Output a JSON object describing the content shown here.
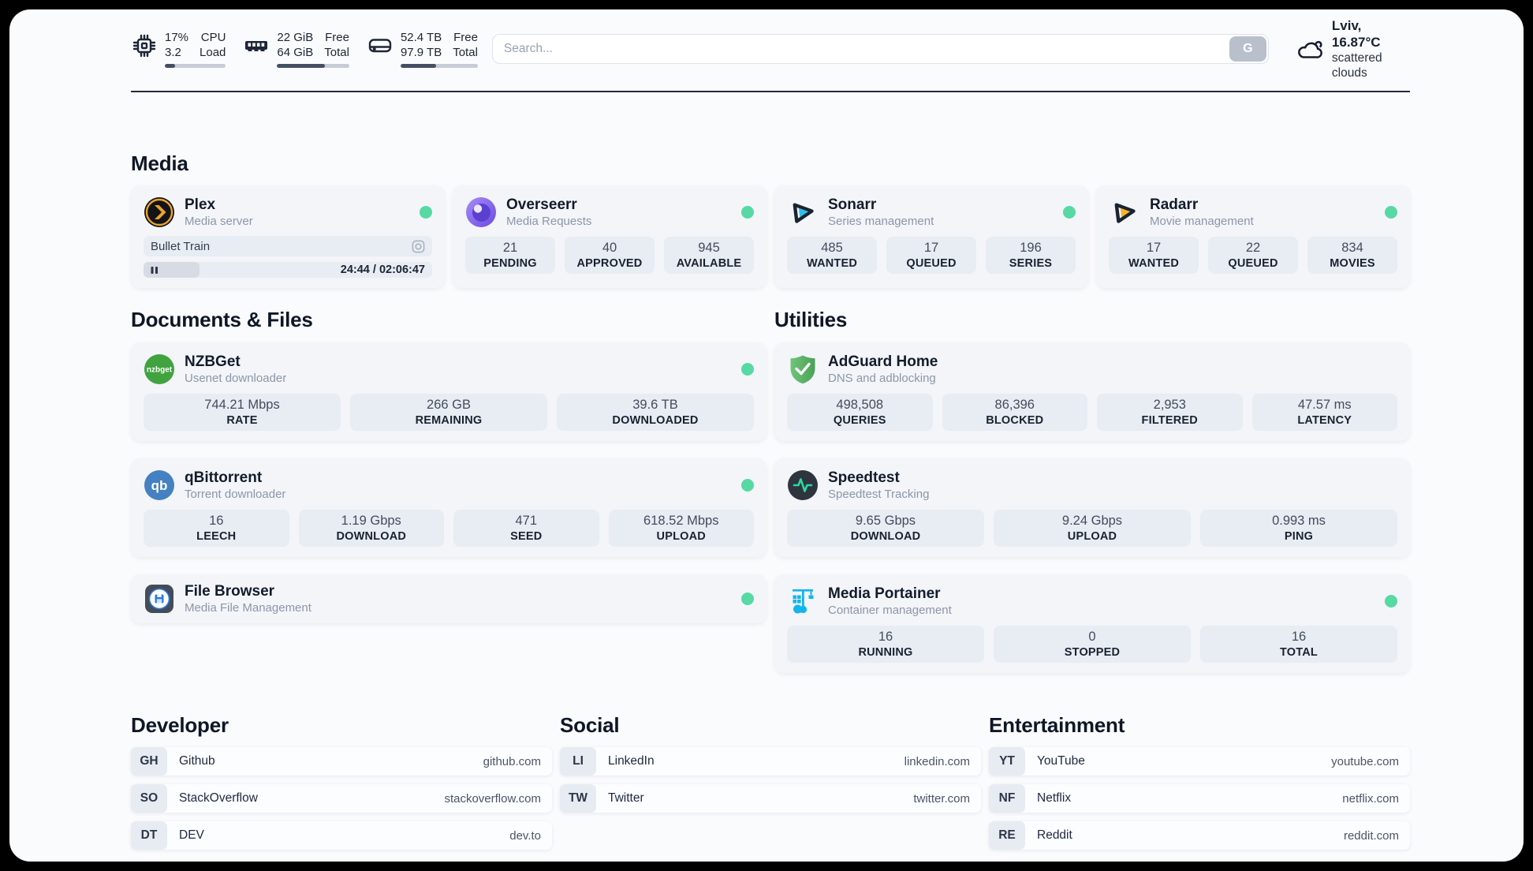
{
  "header": {
    "stats": [
      {
        "icon": "cpu-icon",
        "value1": "17%",
        "value2": "3.2",
        "label1": "CPU",
        "label2": "Load",
        "progress_pct": 17
      },
      {
        "icon": "ram-icon",
        "value1": "22 GiB",
        "value2": "64 GiB",
        "label1": "Free",
        "label2": "Total",
        "progress_pct": 66
      },
      {
        "icon": "disk-icon",
        "value1": "52.4 TB",
        "value2": "97.9 TB",
        "label1": "Free",
        "label2": "Total",
        "progress_pct": 46
      }
    ],
    "search": {
      "placeholder": "Search...",
      "button_label": "G"
    },
    "weather": {
      "icon": "cloud-icon",
      "location": "Lviv, 16.87°C",
      "condition": "scattered clouds"
    }
  },
  "media": {
    "heading": "Media",
    "plex": {
      "name": "Plex",
      "desc": "Media server",
      "status": "online",
      "now_playing": "Bullet Train",
      "time": "24:44 / 02:06:47",
      "progress_pct": 19.5
    },
    "apps": [
      {
        "name": "Overseerr",
        "desc": "Media Requests",
        "status": "online",
        "stats": [
          {
            "value": "21",
            "label": "PENDING"
          },
          {
            "value": "40",
            "label": "APPROVED"
          },
          {
            "value": "945",
            "label": "AVAILABLE"
          }
        ]
      },
      {
        "name": "Sonarr",
        "desc": "Series management",
        "status": "online",
        "stats": [
          {
            "value": "485",
            "label": "WANTED"
          },
          {
            "value": "17",
            "label": "QUEUED"
          },
          {
            "value": "196",
            "label": "SERIES"
          }
        ]
      },
      {
        "name": "Radarr",
        "desc": "Movie management",
        "status": "online",
        "stats": [
          {
            "value": "17",
            "label": "WANTED"
          },
          {
            "value": "22",
            "label": "QUEUED"
          },
          {
            "value": "834",
            "label": "MOVIES"
          }
        ]
      }
    ]
  },
  "documents": {
    "heading": "Documents & Files",
    "apps": [
      {
        "name": "NZBGet",
        "desc": "Usenet downloader",
        "status": "online",
        "stats": [
          {
            "value": "744.21 Mbps",
            "label": "RATE"
          },
          {
            "value": "266 GB",
            "label": "REMAINING"
          },
          {
            "value": "39.6 TB",
            "label": "DOWNLOADED"
          }
        ]
      },
      {
        "name": "qBittorrent",
        "desc": "Torrent downloader",
        "status": "online",
        "stats": [
          {
            "value": "16",
            "label": "LEECH"
          },
          {
            "value": "1.19 Gbps",
            "label": "DOWNLOAD"
          },
          {
            "value": "471",
            "label": "SEED"
          },
          {
            "value": "618.52 Mbps",
            "label": "UPLOAD"
          }
        ]
      },
      {
        "name": "File Browser",
        "desc": "Media File Management",
        "status": "online",
        "stats": []
      }
    ]
  },
  "utilities": {
    "heading": "Utilities",
    "apps": [
      {
        "name": "AdGuard Home",
        "desc": "DNS and adblocking",
        "stats": [
          {
            "value": "498,508",
            "label": "QUERIES"
          },
          {
            "value": "86,396",
            "label": "BLOCKED"
          },
          {
            "value": "2,953",
            "label": "FILTERED"
          },
          {
            "value": "47.57 ms",
            "label": "LATENCY"
          }
        ]
      },
      {
        "name": "Speedtest",
        "desc": "Speedtest Tracking",
        "stats": [
          {
            "value": "9.65 Gbps",
            "label": "DOWNLOAD"
          },
          {
            "value": "9.24 Gbps",
            "label": "UPLOAD"
          },
          {
            "value": "0.993 ms",
            "label": "PING"
          }
        ]
      },
      {
        "name": "Media Portainer",
        "desc": "Container management",
        "status": "online",
        "stats": [
          {
            "value": "16",
            "label": "RUNNING"
          },
          {
            "value": "0",
            "label": "STOPPED"
          },
          {
            "value": "16",
            "label": "TOTAL"
          }
        ]
      }
    ]
  },
  "bookmarks": [
    {
      "heading": "Developer",
      "items": [
        {
          "abbr": "GH",
          "name": "Github",
          "url": "github.com"
        },
        {
          "abbr": "SO",
          "name": "StackOverflow",
          "url": "stackoverflow.com"
        },
        {
          "abbr": "DT",
          "name": "DEV",
          "url": "dev.to"
        }
      ]
    },
    {
      "heading": "Social",
      "items": [
        {
          "abbr": "LI",
          "name": "LinkedIn",
          "url": "linkedin.com"
        },
        {
          "abbr": "TW",
          "name": "Twitter",
          "url": "twitter.com"
        }
      ]
    },
    {
      "heading": "Entertainment",
      "items": [
        {
          "abbr": "YT",
          "name": "YouTube",
          "url": "youtube.com"
        },
        {
          "abbr": "NF",
          "name": "Netflix",
          "url": "netflix.com"
        },
        {
          "abbr": "RE",
          "name": "Reddit",
          "url": "reddit.com"
        }
      ]
    }
  ],
  "colors": {
    "status_online": "#57d9a3",
    "plex_accent": "#e8a52b",
    "sonarr_accent": "#2fc0ea",
    "radarr_accent": "#f7b32b",
    "qbittorrent_accent": "#4580c2",
    "nzbget_accent": "#40a33f",
    "adguard_accent": "#5fbb6a",
    "speedtest_accent": "#2bd9a0",
    "portainer_accent": "#13b5ea",
    "filebrowser_accent": "#2d79e0"
  }
}
